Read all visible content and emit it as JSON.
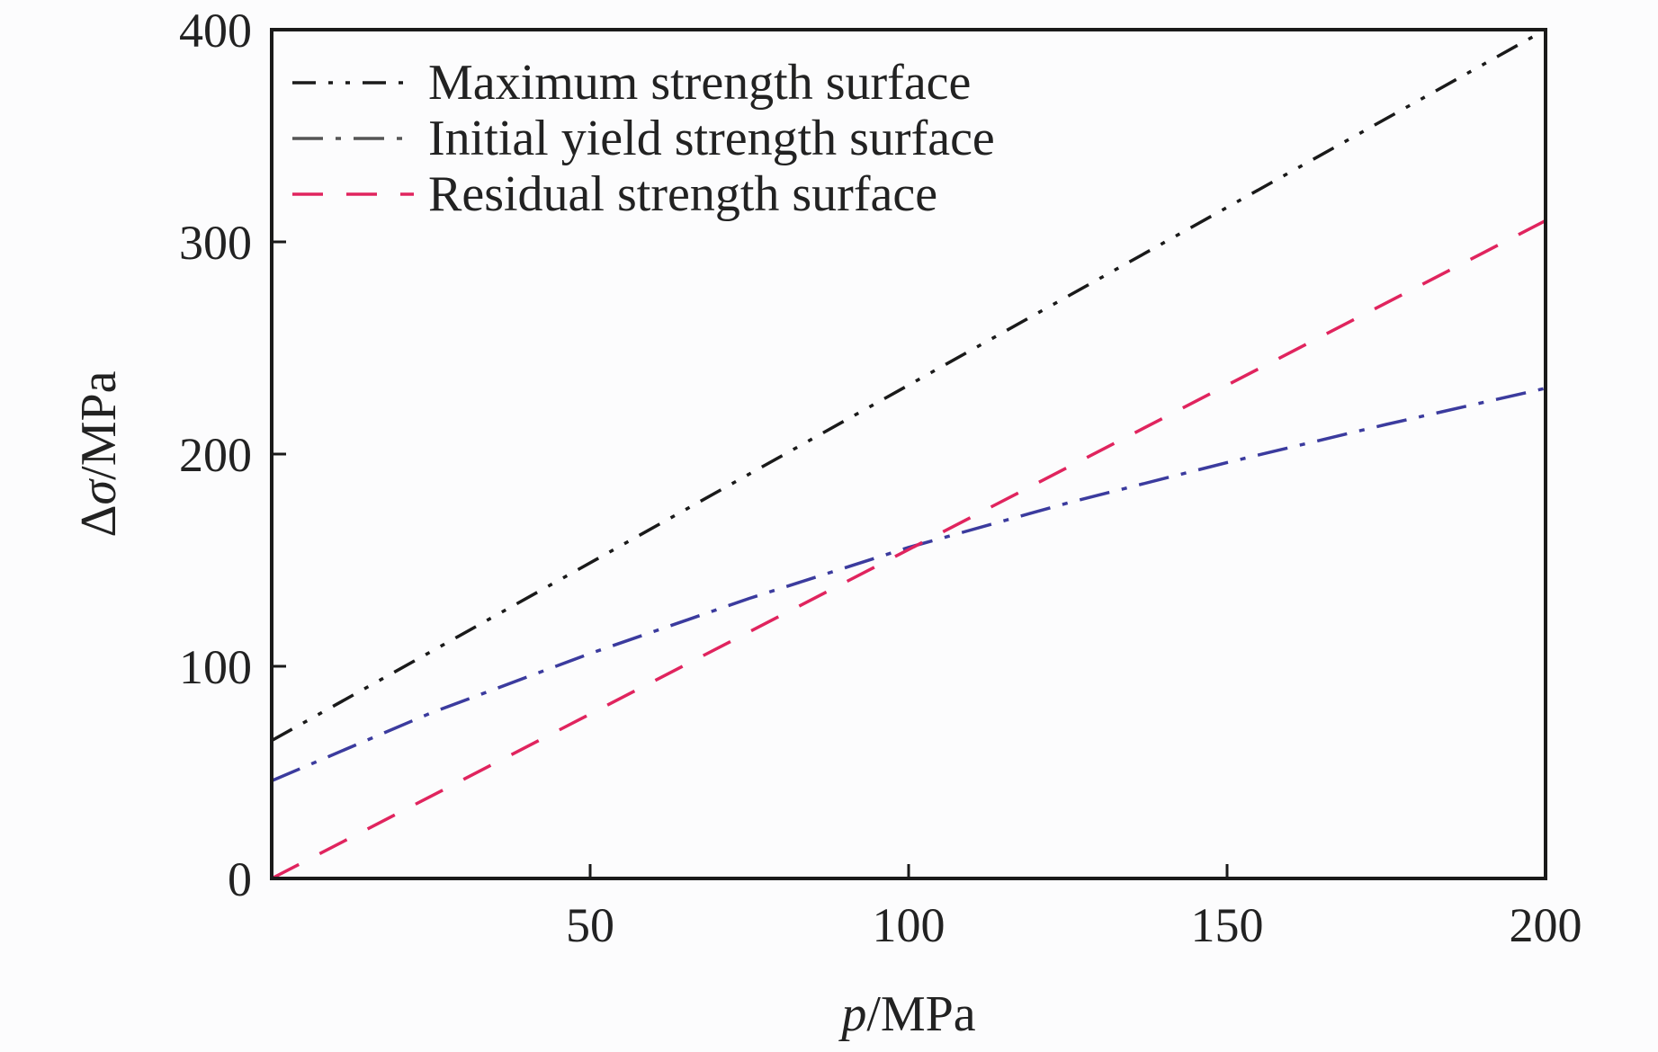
{
  "chart_data": {
    "type": "line",
    "xlabel": "p/MPa",
    "xlabel_parts": [
      "p",
      "/MPa"
    ],
    "ylabel": "Δσ/MPa",
    "ylabel_parts": [
      "Δ",
      "σ",
      "/MPa"
    ],
    "xlim": [
      0,
      200
    ],
    "ylim": [
      0,
      400
    ],
    "xticks": [
      50,
      100,
      150,
      200
    ],
    "yticks": [
      0,
      100,
      200,
      300,
      400
    ],
    "grid": false,
    "legend_position": "top-left",
    "series": [
      {
        "name": "Maximum strength surface",
        "color": "#1a1a1a",
        "line_style": "dash-dot-dot",
        "x": [
          0,
          200
        ],
        "y": [
          65,
          400
        ]
      },
      {
        "name": "Initial yield strength surface",
        "color": "#3b3b9e",
        "legend_color": "#555555",
        "line_style": "dash-dot",
        "x": [
          0,
          25,
          50,
          75,
          100,
          125,
          150,
          175,
          200
        ],
        "y": [
          46,
          78,
          106,
          132,
          156,
          177,
          196,
          214,
          231
        ]
      },
      {
        "name": "Residual strength surface",
        "color": "#e0245e",
        "line_style": "dashed",
        "x": [
          0,
          200
        ],
        "y": [
          0,
          310
        ]
      }
    ]
  }
}
